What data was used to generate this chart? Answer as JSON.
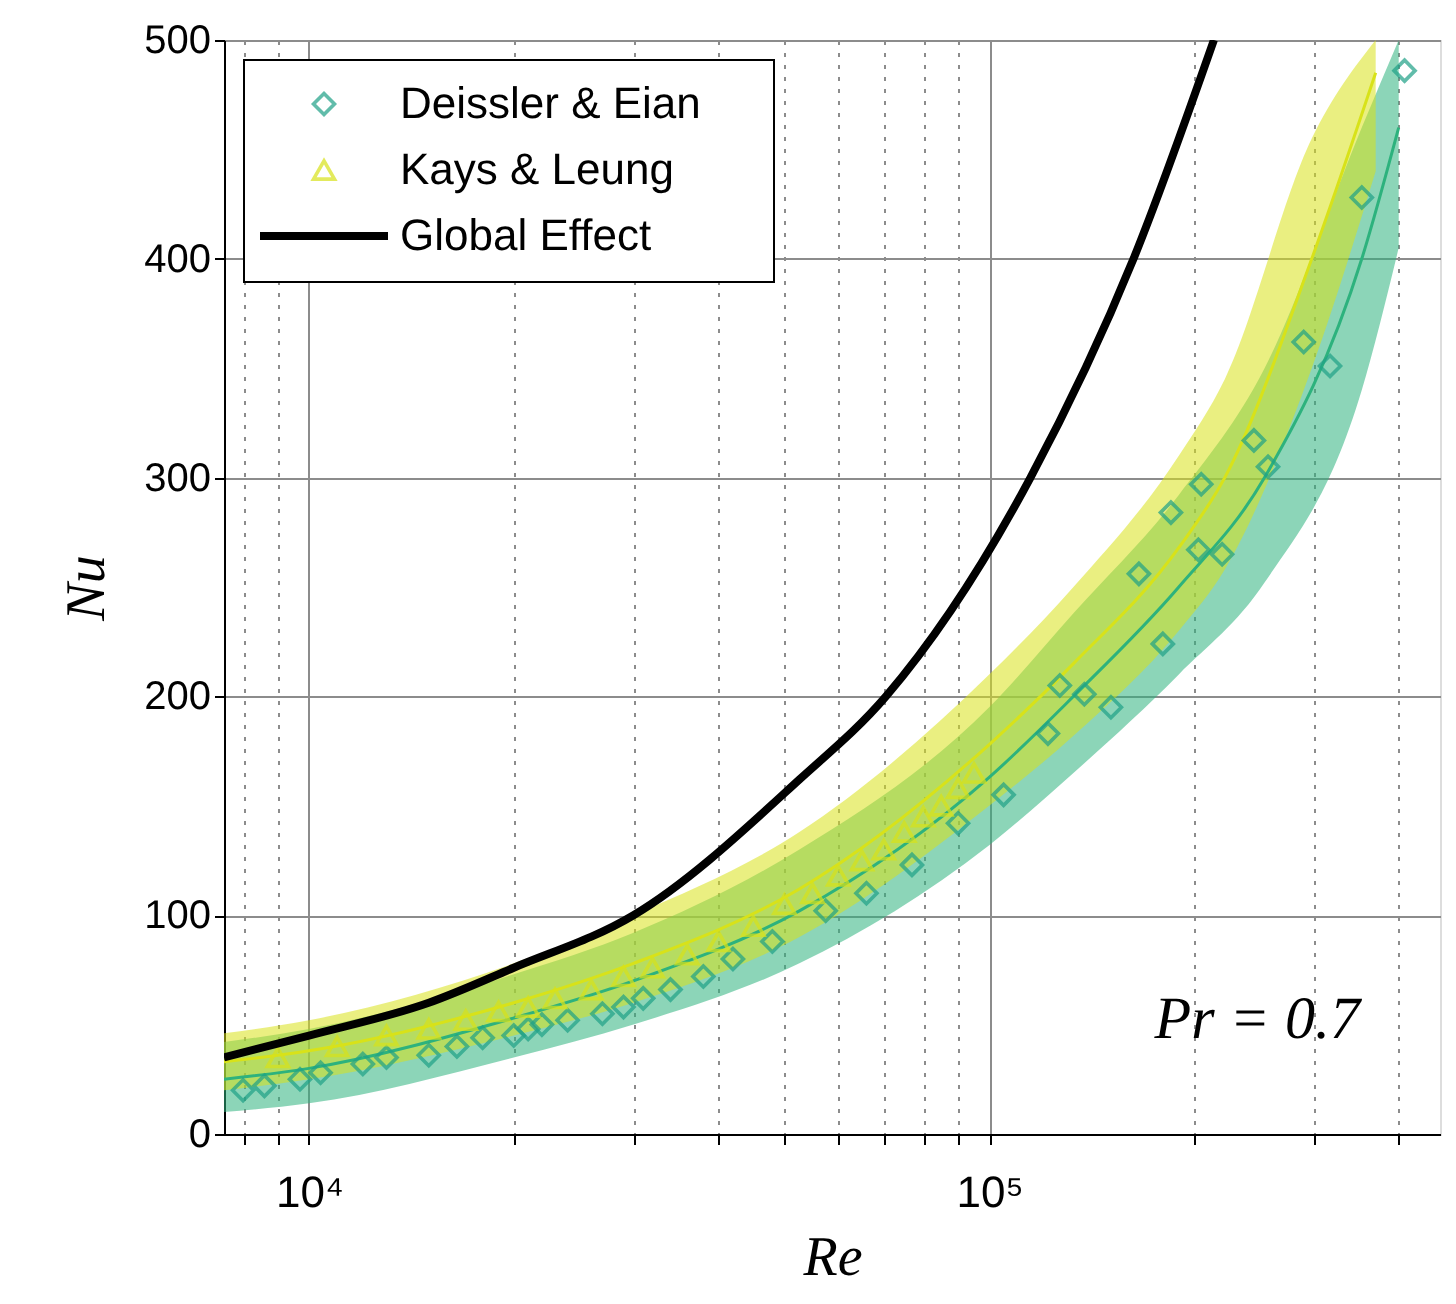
{
  "chart_data": {
    "type": "scatter",
    "xlabel": "Re",
    "ylabel": "Nu",
    "log": "x",
    "grid": true,
    "legend": "top left",
    "xlim": [
      7500,
      460000
    ],
    "ylim": [
      0,
      500
    ],
    "xticks": [
      {
        "value": 8000,
        "label": null
      },
      {
        "value": 9000,
        "label": null
      },
      {
        "value": 10000,
        "label": "10⁴"
      },
      {
        "value": 20000,
        "label": null
      },
      {
        "value": 30000,
        "label": null
      },
      {
        "value": 40000,
        "label": null
      },
      {
        "value": 50000,
        "label": null
      },
      {
        "value": 60000,
        "label": null
      },
      {
        "value": 70000,
        "label": null
      },
      {
        "value": 80000,
        "label": null
      },
      {
        "value": 90000,
        "label": null
      },
      {
        "value": 100000,
        "label": "10⁵"
      },
      {
        "value": 200000,
        "label": null
      },
      {
        "value": 300000,
        "label": null
      },
      {
        "value": 400000,
        "label": null
      }
    ],
    "yticks": [
      0,
      100,
      200,
      300,
      400,
      500
    ],
    "annotations": [
      "Pr = 0.7"
    ],
    "series": [
      {
        "type": "line",
        "color": "#2db27d",
        "x": [
          7500,
          10000,
          20000,
          30000,
          52600,
          100000,
          133000,
          190000,
          254000,
          353000,
          400000
        ],
        "values": [
          25,
          30,
          53,
          70,
          102,
          163,
          200,
          250,
          300,
          400,
          460
        ],
        "lower": [
          10,
          14,
          35,
          50,
          78,
          132,
          165,
          210,
          252,
          340,
          405
        ],
        "upper": [
          42,
          48,
          73,
          92,
          130,
          195,
          238,
          292,
          350,
          460,
          500
        ]
      },
      {
        "type": "line",
        "color": "#d8e219",
        "x": [
          7500,
          10000,
          20000,
          30000,
          52600,
          100000,
          133000,
          190000,
          222000,
          298000,
          370000
        ],
        "values": [
          33,
          38,
          60,
          78,
          112,
          178,
          215,
          268,
          300,
          400,
          485
        ],
        "lower": [
          20,
          25,
          45,
          60,
          90,
          150,
          182,
          230,
          258,
          350,
          440
        ],
        "upper": [
          46,
          52,
          78,
          100,
          138,
          210,
          250,
          310,
          345,
          455,
          500
        ]
      },
      {
        "name": "Deissler & Eian",
        "color": "#1fa187",
        "marker": "diamond",
        "x": [
          8000,
          8600,
          9700,
          10400,
          12000,
          13000,
          15000,
          16500,
          18000,
          20000,
          21000,
          22000,
          24000,
          27000,
          29000,
          31000,
          34000,
          38000,
          42000,
          48000,
          57500,
          66000,
          77000,
          90000,
          105000,
          122000,
          127000,
          138000,
          151000,
          166000,
          180000,
          185000,
          203000,
          205000,
          220000,
          245000,
          257000,
          290000,
          317000,
          353000,
          408000
        ],
        "values": [
          20,
          22,
          25,
          28,
          32,
          35,
          36,
          40,
          44,
          45,
          48,
          50,
          52,
          55,
          58,
          62,
          66,
          72,
          80,
          88,
          102,
          110,
          123,
          142,
          155,
          183,
          205,
          201,
          195,
          256,
          224,
          284,
          267,
          297,
          265,
          317,
          305,
          362,
          351,
          428,
          486
        ]
      },
      {
        "name": "Kays & Leung",
        "color": "#d8e219",
        "marker": "triangle",
        "x": [
          9000,
          11000,
          13000,
          15000,
          17000,
          19000,
          21000,
          23000,
          26000,
          29000,
          32000,
          36000,
          40000,
          45000,
          50000,
          55000,
          60000,
          65000,
          70000,
          75000,
          80000,
          85000,
          90000,
          95000
        ],
        "values": [
          35,
          40,
          45,
          48,
          52,
          56,
          58,
          62,
          66,
          72,
          76,
          82,
          88,
          95,
          105,
          110,
          118,
          125,
          130,
          138,
          145,
          150,
          158,
          165
        ]
      },
      {
        "type": "line",
        "name": "Global Effect",
        "color": "#000000",
        "x": [
          7500,
          10000,
          15000,
          20000,
          30000,
          52600,
          70500,
          115000,
          163000,
          214000
        ],
        "values": [
          35,
          45,
          60,
          76,
          100,
          162,
          200,
          300,
          400,
          500
        ]
      }
    ]
  }
}
